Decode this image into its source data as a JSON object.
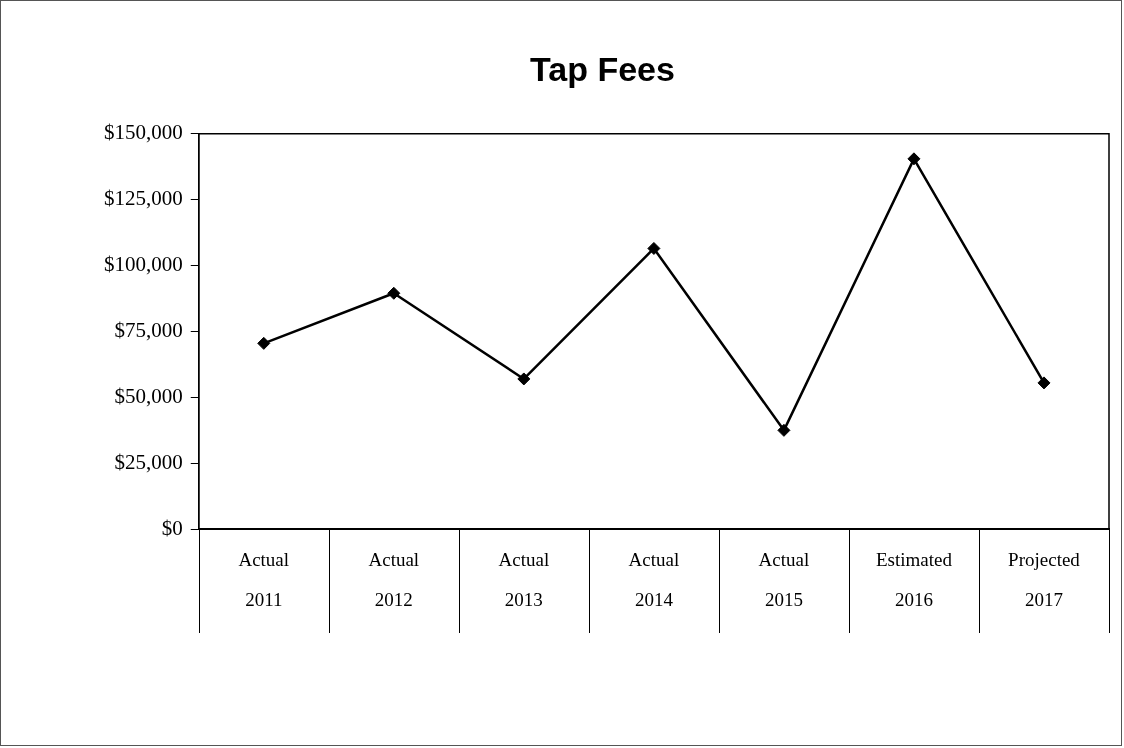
{
  "chart_data": {
    "type": "line",
    "title": "Tap Fees",
    "categories": [
      "Actual 2011",
      "Actual 2012",
      "Actual 2013",
      "Actual 2014",
      "Actual 2015",
      "Estimated 2016",
      "Projected 2017"
    ],
    "series": [
      {
        "color": "#000000",
        "values": [
          70500,
          89500,
          57000,
          106500,
          37500,
          140500,
          55500
        ]
      }
    ],
    "ylim": [
      0,
      150000
    ],
    "yticks": [
      {
        "value": 0,
        "label": "$0"
      },
      {
        "value": 25000,
        "label": "$25,000"
      },
      {
        "value": 50000,
        "label": "$50,000"
      },
      {
        "value": 75000,
        "label": "$75,000"
      },
      {
        "value": 100000,
        "label": "$100,000"
      },
      {
        "value": 125000,
        "label": "$125,000"
      },
      {
        "value": 150000,
        "label": "$150,000"
      }
    ],
    "grid": false,
    "legend": false,
    "marker": "diamond",
    "line_style": "solid"
  }
}
